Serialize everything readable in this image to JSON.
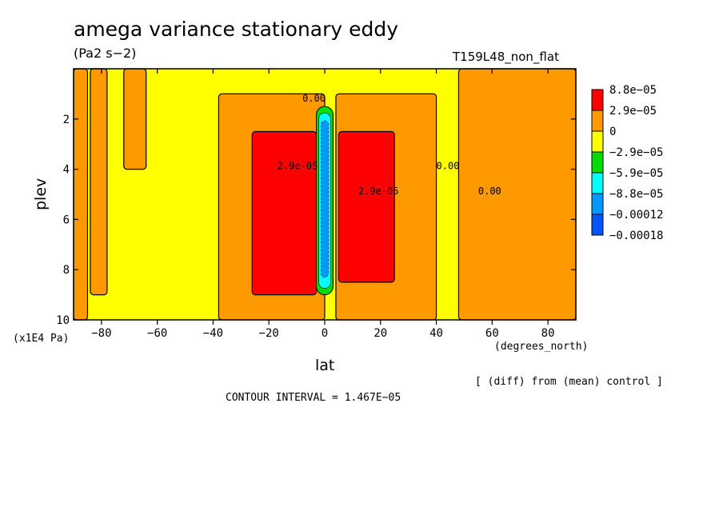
{
  "chart_data": {
    "type": "heatmap",
    "title": "amega variance stationary eddy",
    "units": "(Pa2 s−2)",
    "run_label": "T159L48_non_flat",
    "xlabel": "lat",
    "ylabel": "plev",
    "x_unit": "(degrees_north)",
    "y_unit": "(x1E4 Pa)",
    "xlim": [
      -90,
      90
    ],
    "ylim": [
      10,
      0
    ],
    "x_ticks": [
      -80,
      -60,
      -40,
      -20,
      0,
      20,
      40,
      60,
      80
    ],
    "x_tick_labels": [
      "−80",
      "−60",
      "−40",
      "−20",
      "0",
      "20",
      "40",
      "60",
      "80"
    ],
    "y_ticks": [
      2,
      4,
      6,
      8,
      10
    ],
    "y_tick_labels": [
      "2",
      "4",
      "6",
      "8",
      "10"
    ],
    "diff_note": "[ (diff) from (mean) control ]",
    "contour_interval_text": "CONTOUR INTERVAL = 1.467E−05",
    "colorbar": {
      "labels": [
        "8.8e−05",
        "2.9e−05",
        "0",
        "−2.9e−05",
        "−5.9e−05",
        "−8.8e−05",
        "−0.00012",
        "−0.00018"
      ],
      "colors": [
        "#ff0000",
        "#ff9900",
        "#ffff00",
        "#00dd00",
        "#00ffff",
        "#0099ff",
        "#0055ff"
      ]
    },
    "regions": [
      {
        "band": "positive",
        "lat": [
          -90,
          -85
        ],
        "plev": [
          0,
          10
        ]
      },
      {
        "band": "positive",
        "lat": [
          -84,
          -78
        ],
        "plev": [
          0,
          9
        ]
      },
      {
        "band": "positive",
        "lat": [
          -72,
          -64
        ],
        "plev": [
          0,
          4
        ]
      },
      {
        "band": "positive",
        "lat": [
          -38,
          0
        ],
        "plev": [
          1,
          10
        ]
      },
      {
        "band": "high",
        "lat": [
          -26,
          -3
        ],
        "plev": [
          2.5,
          9
        ]
      },
      {
        "band": "negative",
        "lat": [
          -3,
          3
        ],
        "plev": [
          1.5,
          9
        ]
      },
      {
        "band": "positive",
        "lat": [
          4,
          40
        ],
        "plev": [
          1,
          10
        ]
      },
      {
        "band": "high",
        "lat": [
          5,
          25
        ],
        "plev": [
          2.5,
          8.5
        ]
      },
      {
        "band": "positive",
        "lat": [
          48,
          90
        ],
        "plev": [
          0,
          10
        ]
      }
    ],
    "contour_labels": [
      "0.00",
      "2.9e-05",
      "2.9e-05",
      "0.00",
      "0.00"
    ],
    "grid": false
  }
}
